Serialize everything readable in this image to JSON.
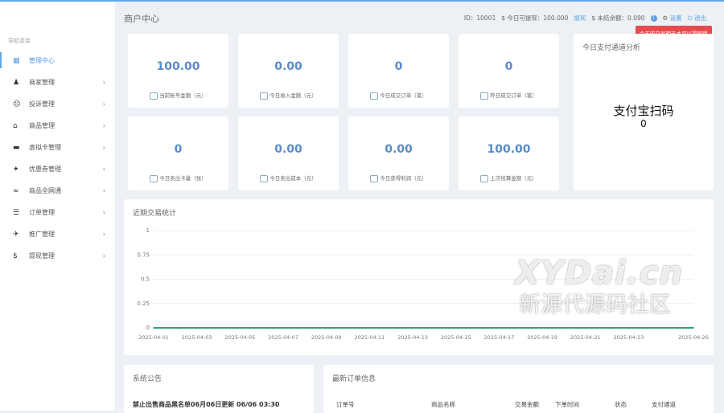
{
  "header": {
    "title": "商户中心",
    "id": "ID：10001",
    "withdrawable": "$ 今日可提现：100.000",
    "withdraw_link": "提现",
    "unsettled": "$ 未结余额：0.090",
    "settings": "设置",
    "logout": "退出",
    "tooltip": "今天的交易明天才可以提现哦"
  },
  "sidebar": {
    "title": "导航菜单",
    "items": [
      {
        "label": "管理中心",
        "icon": "dashboard-icon",
        "glyph": "▦",
        "active": true,
        "chevron": false
      },
      {
        "label": "商家管理",
        "icon": "user-icon",
        "glyph": "♟",
        "chevron": true
      },
      {
        "label": "投诉管理",
        "icon": "smiley-icon",
        "glyph": "☹",
        "chevron": true
      },
      {
        "label": "商品管理",
        "icon": "shop-icon",
        "glyph": "⌂",
        "chevron": true
      },
      {
        "label": "虚拟卡管理",
        "icon": "card-icon",
        "glyph": "▬",
        "chevron": true
      },
      {
        "label": "优惠券管理",
        "icon": "coupon-icon",
        "glyph": "✦",
        "chevron": true
      },
      {
        "label": "商品全网通",
        "icon": "handshake-icon",
        "glyph": "∞",
        "chevron": true
      },
      {
        "label": "订单管理",
        "icon": "list-icon",
        "glyph": "☰",
        "chevron": true
      },
      {
        "label": "推广管理",
        "icon": "send-icon",
        "glyph": "✈",
        "chevron": true
      },
      {
        "label": "提现管理",
        "icon": "dollar-icon",
        "glyph": "$",
        "chevron": true
      }
    ]
  },
  "stats": [
    {
      "value": "100.00",
      "label": "当前账号金额（元）"
    },
    {
      "value": "0.00",
      "label": "今日收入金额（元）"
    },
    {
      "value": "0",
      "label": "今日成交订单（笔）"
    },
    {
      "value": "0",
      "label": "昨日成交订单（笔）"
    },
    {
      "value": "0",
      "label": "今日卖出卡量（张）"
    },
    {
      "value": "0.00",
      "label": "今日卖出成本（元）"
    },
    {
      "value": "0.00",
      "label": "今日获得利润（元）"
    },
    {
      "value": "100.00",
      "label": "上次结算金额（元）"
    }
  ],
  "channel": {
    "title": "今日支付通道分析",
    "name": "支付宝扫码",
    "count": "0"
  },
  "chart_data": {
    "type": "line",
    "title": "近期交易统计",
    "x": [
      "2025-04-01",
      "2025-04-02",
      "2025-04-03",
      "2025-04-04",
      "2025-04-05",
      "2025-04-06",
      "2025-04-07",
      "2025-04-08",
      "2025-04-09",
      "2025-04-10",
      "2025-04-11",
      "2025-04-12",
      "2025-04-13",
      "2025-04-14",
      "2025-04-15",
      "2025-04-16",
      "2025-04-17",
      "2025-04-18",
      "2025-04-19",
      "2025-04-20",
      "2025-04-21",
      "2025-04-22",
      "2025-04-23",
      "2025-04-24",
      "2025-04-25",
      "2025-04-26"
    ],
    "xticks": [
      "2025-04-01",
      "2025-04-03",
      "2025-04-05",
      "2025-04-07",
      "2025-04-09",
      "2025-04-11",
      "2025-04-13",
      "2025-04-15",
      "2025-04-17",
      "2025-04-19",
      "2025-04-21",
      "2025-04-23",
      "2025-04-26"
    ],
    "values": [
      0,
      0,
      0,
      0,
      0,
      0,
      0,
      0,
      0,
      0,
      0,
      0,
      0,
      0,
      0,
      0,
      0,
      0,
      0,
      0,
      0,
      0,
      0,
      0,
      0,
      0
    ],
    "yticks": [
      "1",
      "0.75",
      "0.5",
      "0.25",
      "0"
    ],
    "ylim": [
      0,
      1
    ],
    "grid": true,
    "color": "#1aaa6a"
  },
  "notice": {
    "title": "系统公告",
    "item": "禁止出售商品黑名单06月06日更新 06/06 03:30"
  },
  "orders": {
    "title": "最新订单信息",
    "columns": [
      "订单号",
      "商品名称",
      "交易金额",
      "下单时间",
      "状态",
      "支付通道"
    ]
  },
  "watermark": {
    "line1": "XYDai.cn",
    "line2": "新源代源码社区"
  }
}
